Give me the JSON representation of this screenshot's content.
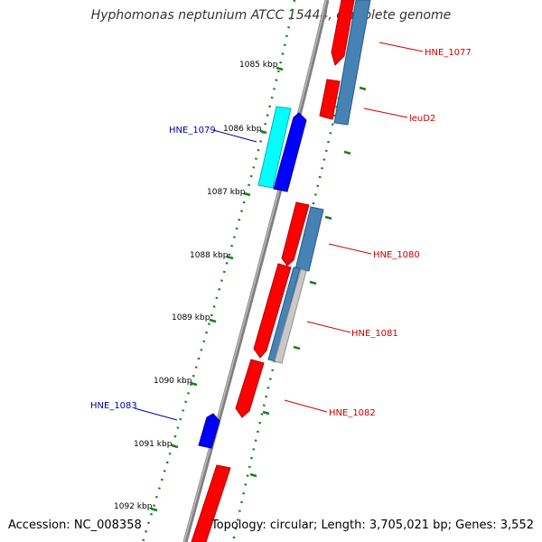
{
  "title": "Hyphomonas neptunium ATCC 15444, complete genome",
  "footer": {
    "accession": "Accession: NC_008358",
    "summary": "Topology: circular; Length: 3,705,021 bp; Genes: 3,552"
  },
  "colors": {
    "backbone": "#808080",
    "tick": "#1a7f1a",
    "cds_forward": "#ff0000",
    "cds_reverse_blue": "#0000ff",
    "cds_cyan": "#00ffff",
    "cds_steelblue": "#4682b4",
    "cds_lightgray": "#c8c8c8",
    "label_red": "#cc0000",
    "label_blue": "#0000aa"
  },
  "scale_labels": [
    "1085 kbp",
    "1086 kbp",
    "1087 kbp",
    "1088 kbp",
    "1089 kbp",
    "1090 kbp",
    "1091 kbp",
    "1092 kbp"
  ],
  "gene_labels": [
    {
      "name": "HNE_1077",
      "color": "red"
    },
    {
      "name": "leuD2",
      "color": "red"
    },
    {
      "name": "HNE_1079",
      "color": "blue"
    },
    {
      "name": "HNE_1080",
      "color": "red"
    },
    {
      "name": "HNE_1081",
      "color": "red"
    },
    {
      "name": "HNE_1082",
      "color": "red"
    },
    {
      "name": "HNE_1083",
      "color": "blue"
    }
  ]
}
